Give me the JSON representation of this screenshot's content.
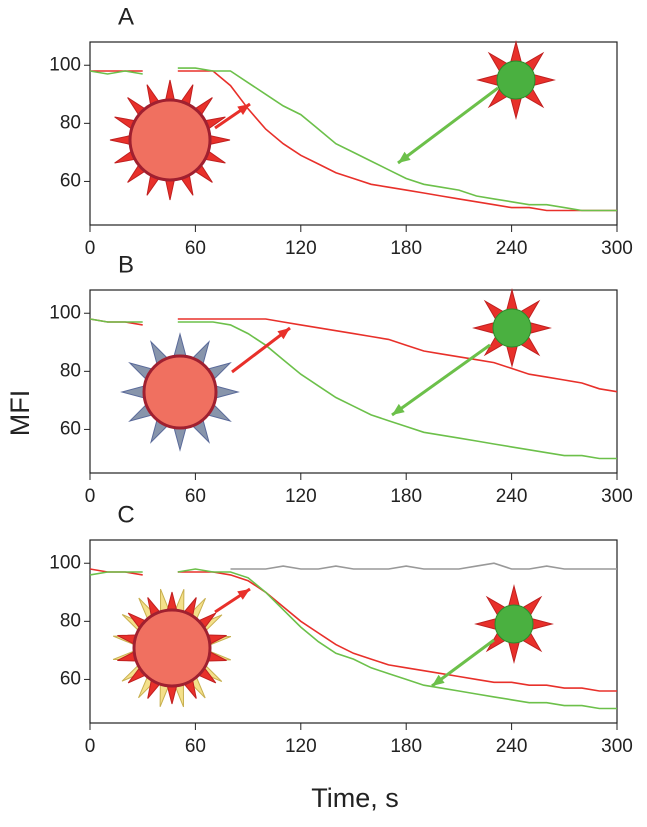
{
  "chart_data": [
    {
      "type": "line",
      "title": "A",
      "ylabel": "MFI",
      "x": [
        0,
        10,
        20,
        30,
        40,
        50,
        60,
        70,
        80,
        90,
        100,
        110,
        120,
        130,
        140,
        150,
        160,
        170,
        180,
        190,
        200,
        210,
        220,
        230,
        240,
        250,
        260,
        270,
        280,
        290,
        300
      ],
      "series": [
        {
          "color": "#e8302a",
          "values": [
            98,
            98,
            98,
            98,
            null,
            98,
            98,
            98,
            93,
            85,
            78,
            73,
            69,
            66,
            63,
            61,
            59,
            58,
            57,
            56,
            55,
            54,
            53,
            52,
            51,
            51,
            50,
            50,
            50,
            50,
            50
          ]
        },
        {
          "color": "#6cc04a",
          "values": [
            98,
            97,
            98,
            97,
            null,
            99,
            99,
            98,
            98,
            94,
            90,
            86,
            83,
            78,
            73,
            70,
            67,
            64,
            61,
            59,
            58,
            57,
            55,
            54,
            53,
            52,
            52,
            51,
            50,
            50,
            50
          ]
        }
      ],
      "xlim": [
        0,
        300
      ],
      "xticks": [
        0,
        60,
        120,
        180,
        240,
        300
      ],
      "ylim": [
        45,
        108
      ],
      "yticks": [
        60,
        80,
        100
      ]
    },
    {
      "type": "line",
      "title": "B",
      "x": [
        0,
        10,
        20,
        30,
        40,
        50,
        60,
        70,
        80,
        90,
        100,
        110,
        120,
        130,
        140,
        150,
        160,
        170,
        180,
        190,
        200,
        210,
        220,
        230,
        240,
        250,
        260,
        270,
        280,
        290,
        300
      ],
      "series": [
        {
          "color": "#e8302a",
          "values": [
            98,
            97,
            97,
            96,
            null,
            98,
            98,
            98,
            98,
            98,
            98,
            97,
            96,
            95,
            94,
            93,
            92,
            91,
            89,
            87,
            86,
            85,
            84,
            83,
            81,
            79,
            78,
            77,
            76,
            74,
            73
          ]
        },
        {
          "color": "#6cc04a",
          "values": [
            98,
            97,
            97,
            97,
            null,
            97,
            97,
            97,
            96,
            93,
            89,
            84,
            79,
            75,
            71,
            68,
            65,
            63,
            61,
            59,
            58,
            57,
            56,
            55,
            54,
            53,
            52,
            51,
            51,
            50,
            50
          ]
        }
      ],
      "xlim": [
        0,
        300
      ],
      "xticks": [
        0,
        60,
        120,
        180,
        240,
        300
      ],
      "ylim": [
        45,
        108
      ],
      "yticks": [
        60,
        80,
        100
      ]
    },
    {
      "type": "line",
      "title": "C",
      "xlabel": "Time, s",
      "x": [
        0,
        10,
        20,
        30,
        40,
        50,
        60,
        70,
        80,
        90,
        100,
        110,
        120,
        130,
        140,
        150,
        160,
        170,
        180,
        190,
        200,
        210,
        220,
        230,
        240,
        250,
        260,
        270,
        280,
        290,
        300
      ],
      "series": [
        {
          "color": "#999999",
          "values": [
            null,
            null,
            null,
            null,
            null,
            null,
            null,
            null,
            98,
            98,
            98,
            99,
            98,
            98,
            99,
            98,
            98,
            98,
            99,
            98,
            98,
            98,
            99,
            100,
            98,
            98,
            99,
            98,
            98,
            98,
            98
          ]
        },
        {
          "color": "#e8302a",
          "values": [
            98,
            97,
            97,
            96,
            null,
            97,
            97,
            97,
            96,
            94,
            90,
            85,
            80,
            76,
            72,
            69,
            67,
            65,
            64,
            63,
            62,
            61,
            60,
            59,
            59,
            58,
            58,
            57,
            57,
            56,
            56
          ]
        },
        {
          "color": "#6cc04a",
          "values": [
            96,
            97,
            97,
            97,
            null,
            97,
            98,
            97,
            97,
            95,
            90,
            84,
            78,
            73,
            69,
            67,
            64,
            62,
            60,
            58,
            57,
            56,
            55,
            54,
            53,
            52,
            52,
            51,
            51,
            50,
            50
          ]
        }
      ],
      "xlim": [
        0,
        300
      ],
      "xticks": [
        0,
        60,
        120,
        180,
        240,
        300
      ],
      "ylim": [
        45,
        108
      ],
      "yticks": [
        60,
        80,
        100
      ]
    }
  ]
}
